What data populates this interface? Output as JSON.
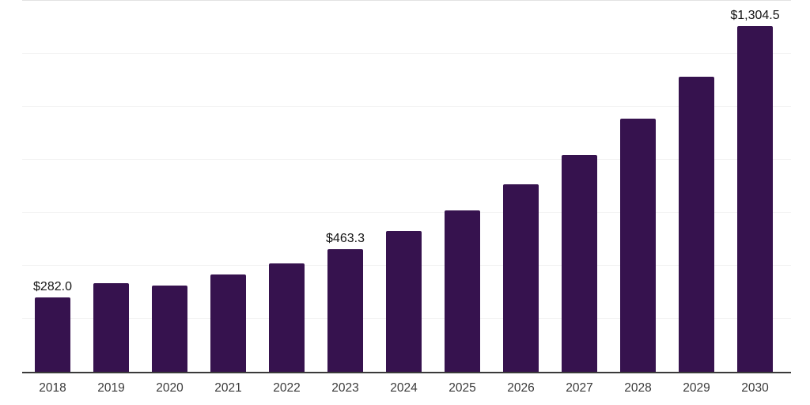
{
  "chart_data": {
    "type": "bar",
    "title": "",
    "xlabel": "",
    "ylabel": "",
    "categories": [
      "2018",
      "2019",
      "2020",
      "2021",
      "2022",
      "2023",
      "2024",
      "2025",
      "2026",
      "2027",
      "2028",
      "2029",
      "2030"
    ],
    "values": [
      282.0,
      334,
      325,
      367,
      409,
      463.3,
      531,
      608,
      707,
      818,
      955,
      1113,
      1304.5
    ],
    "value_labels": [
      "$282.0",
      "",
      "",
      "",
      "",
      "$463.3",
      "",
      "",
      "",
      "",
      "",
      "",
      "$1,304.5"
    ],
    "labeled_values_note": "only 2018, 2023 and 2030 bars show data labels; other values estimated from gridlines",
    "ylim": [
      0,
      1400
    ],
    "gridline_step": 200,
    "grid": "horizontal",
    "legend": "none",
    "bar_color": "#36124E",
    "axis_color": "#3a3a3a",
    "background_color": "#ffffff"
  }
}
